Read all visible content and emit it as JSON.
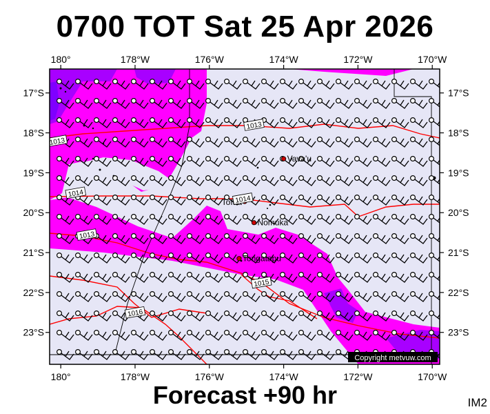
{
  "title": "0700 TOT Sat 25 Apr 2026",
  "footer": "Forecast +90 hr",
  "tag": "IM2",
  "copyright": "Copyright metvuw.com",
  "map": {
    "lon_range": [
      -180.3,
      -169.8
    ],
    "lat_range": [
      -16.4,
      -23.8
    ],
    "top_lon_labels": [
      "180°",
      "178°W",
      "176°W",
      "174°W",
      "172°W",
      "170°W"
    ],
    "bottom_lon_labels": [
      "180°",
      "178°W",
      "176°W",
      "174°W",
      "172°W",
      "170°W"
    ],
    "lat_labels": [
      "17°S",
      "18°S",
      "19°S",
      "20°S",
      "21°S",
      "22°S",
      "23°S"
    ],
    "places": [
      {
        "name": "Vava'u",
        "lon": -174.0,
        "lat": -18.65
      },
      {
        "name": "Tofua",
        "lon": -175.05,
        "lat": -19.72
      },
      {
        "name": "Nomuka",
        "lon": -174.8,
        "lat": -20.25
      },
      {
        "name": "Tongatapu",
        "lon": -175.2,
        "lat": -21.15
      }
    ],
    "isobars": [
      {
        "value": "1013",
        "label_lon": -174.8,
        "label_lat": -17.8
      },
      {
        "value": "1013",
        "label_lon": -180.1,
        "label_lat": -18.2
      },
      {
        "value": "1014",
        "label_lon": -179.6,
        "label_lat": -19.5
      },
      {
        "value": "1014",
        "label_lon": -175.1,
        "label_lat": -19.65
      },
      {
        "value": "1013",
        "label_lon": -179.3,
        "label_lat": -20.55
      },
      {
        "value": "1015",
        "label_lon": -174.6,
        "label_lat": -21.75
      },
      {
        "value": "1016",
        "label_lon": -178.0,
        "label_lat": -22.5
      }
    ],
    "colors": {
      "background": "#e6e6f6",
      "magenta": "#ff00ff",
      "purple": "#a800ff",
      "violet": "#7f00ff",
      "isobar": "#ff0000",
      "place_marker": "#cc0000"
    }
  }
}
